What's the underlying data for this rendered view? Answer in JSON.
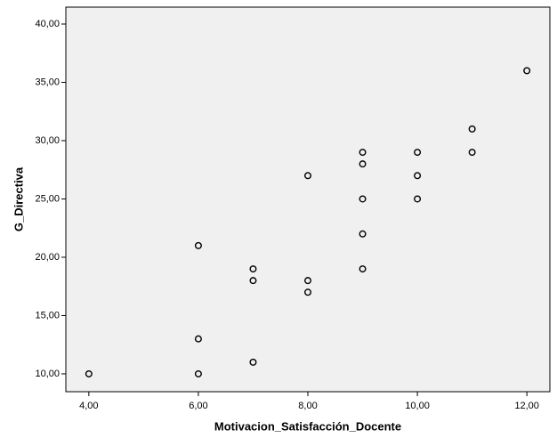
{
  "chart_data": {
    "type": "scatter",
    "x_label": "Motivacion_Satisfacción_Docente",
    "y_label": "G_Directiva",
    "x": [
      4,
      6,
      6,
      6,
      7,
      7,
      7,
      8,
      8,
      8,
      9,
      9,
      9,
      9,
      9,
      10,
      10,
      10,
      11,
      11,
      12
    ],
    "values": [
      10,
      10,
      13,
      21,
      11,
      18,
      19,
      17,
      18,
      27,
      19,
      22,
      25,
      28,
      29,
      25,
      27,
      29,
      29,
      31,
      36
    ],
    "color": "#000000",
    "background": "#f0f0f0",
    "xlim": [
      3.58,
      12.42
    ],
    "ylim": [
      8.47,
      41.45
    ],
    "xticks": [
      {
        "value": 4,
        "label": "4,00"
      },
      {
        "value": 6,
        "label": "6,00"
      },
      {
        "value": 8,
        "label": "8,00"
      },
      {
        "value": 10,
        "label": "10,00"
      },
      {
        "value": 12,
        "label": "12,00"
      }
    ],
    "yticks": [
      {
        "value": 10,
        "label": "10,00"
      },
      {
        "value": 15,
        "label": "15,00"
      },
      {
        "value": 20,
        "label": "20,00"
      },
      {
        "value": 25,
        "label": "25,00"
      },
      {
        "value": 30,
        "label": "30,00"
      },
      {
        "value": 35,
        "label": "35,00"
      },
      {
        "value": 40,
        "label": "40,00"
      }
    ]
  }
}
